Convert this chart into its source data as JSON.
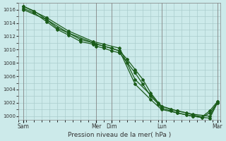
{
  "xlabel": "Pression niveau de la mer( hPa )",
  "background_color": "#cceaea",
  "grid_color_major": "#aacccc",
  "grid_color_minor": "#bbdada",
  "line_color": "#1a5c1a",
  "ylim": [
    999.5,
    1017.0
  ],
  "yticks": [
    1000,
    1002,
    1004,
    1006,
    1008,
    1010,
    1012,
    1014,
    1016
  ],
  "xlim": [
    0,
    13.0
  ],
  "day_labels": [
    "Sam",
    "",
    "Mer",
    "Dim",
    "",
    "Lun",
    "",
    "Mar"
  ],
  "day_positions": [
    0.3,
    2.5,
    5.0,
    6.0,
    7.5,
    9.2,
    11.2,
    12.8
  ],
  "vline_positions": [
    0.3,
    5.0,
    6.0,
    9.2,
    12.8
  ],
  "series": [
    {
      "x": [
        0.3,
        1.0,
        1.8,
        2.5,
        3.2,
        4.0,
        4.8,
        5.0,
        5.5,
        6.0,
        6.5,
        7.0,
        7.5,
        8.0,
        8.5,
        9.0,
        9.2,
        9.8,
        10.2,
        10.8,
        11.2,
        11.8,
        12.3,
        12.8
      ],
      "y": [
        1016.5,
        1015.8,
        1014.5,
        1013.2,
        1012.5,
        1011.5,
        1011.0,
        1010.8,
        1010.5,
        1010.2,
        1009.8,
        1008.5,
        1007.0,
        1005.5,
        1003.5,
        1002.0,
        1001.5,
        1001.0,
        1000.8,
        1000.5,
        1000.2,
        999.9,
        1000.8,
        1002.2
      ],
      "marker_x": [
        0.3,
        1.0,
        1.8,
        2.5,
        3.2,
        4.0,
        4.8,
        5.0,
        5.5,
        6.0,
        6.5,
        7.0,
        7.5,
        8.0,
        8.5,
        9.0,
        9.2,
        9.8,
        10.2,
        10.8,
        11.2,
        11.8,
        12.3,
        12.8
      ],
      "marker_y": [
        1016.5,
        1015.8,
        1014.5,
        1013.2,
        1012.5,
        1011.5,
        1011.0,
        1010.8,
        1010.5,
        1010.2,
        1009.8,
        1008.5,
        1007.0,
        1005.5,
        1003.5,
        1002.0,
        1001.5,
        1001.0,
        1000.8,
        1000.5,
        1000.2,
        999.9,
        1000.8,
        1002.2
      ]
    },
    {
      "x": [
        0.3,
        1.0,
        1.8,
        2.5,
        3.2,
        4.0,
        4.8,
        5.0,
        5.5,
        6.0,
        6.5,
        7.0,
        7.5,
        8.0,
        8.5,
        9.0,
        9.2,
        9.8,
        10.2,
        10.8,
        11.2,
        11.8,
        12.3,
        12.8
      ],
      "y": [
        1016.2,
        1015.5,
        1014.2,
        1013.0,
        1012.2,
        1011.2,
        1010.8,
        1010.5,
        1010.2,
        1009.8,
        1009.5,
        1008.0,
        1006.5,
        1004.8,
        1003.0,
        1001.8,
        1001.2,
        1000.8,
        1000.5,
        1000.2,
        1000.0,
        999.8,
        1000.5,
        1002.0
      ],
      "marker_x": [
        0.3,
        1.0,
        1.8,
        2.5,
        3.2,
        4.0,
        4.8,
        5.0,
        5.5,
        6.0,
        6.5,
        7.0,
        7.5,
        8.0,
        8.5,
        9.0,
        9.2,
        9.8,
        10.2,
        10.8,
        11.2,
        11.8,
        12.3,
        12.8
      ],
      "marker_y": [
        1016.2,
        1015.5,
        1014.2,
        1013.0,
        1012.2,
        1011.2,
        1010.8,
        1010.5,
        1010.2,
        1009.8,
        1009.5,
        1008.0,
        1006.5,
        1004.8,
        1003.0,
        1001.8,
        1001.2,
        1000.8,
        1000.5,
        1000.2,
        1000.0,
        999.8,
        1000.5,
        1002.0
      ]
    },
    {
      "x": [
        0.3,
        1.8,
        3.2,
        4.8,
        5.5,
        6.5,
        7.5,
        8.5,
        9.2,
        10.2,
        11.2,
        12.3,
        12.8
      ],
      "y": [
        1016.5,
        1014.8,
        1012.8,
        1011.2,
        1010.8,
        1010.2,
        1005.5,
        1003.2,
        1001.5,
        1000.8,
        1000.3,
        1000.0,
        1002.2
      ],
      "marker_x": [
        0.3,
        1.8,
        3.2,
        4.8,
        5.5,
        6.5,
        7.5,
        8.5,
        9.2,
        10.2,
        11.2,
        12.3,
        12.8
      ],
      "marker_y": [
        1016.5,
        1014.8,
        1012.8,
        1011.2,
        1010.8,
        1010.2,
        1005.5,
        1003.2,
        1001.5,
        1000.8,
        1000.3,
        1000.0,
        1002.2
      ]
    },
    {
      "x": [
        0.3,
        1.8,
        3.2,
        4.8,
        5.5,
        6.5,
        7.5,
        8.5,
        9.2,
        10.2,
        11.2,
        12.3,
        12.8
      ],
      "y": [
        1016.0,
        1014.5,
        1012.5,
        1011.0,
        1010.5,
        1009.8,
        1004.8,
        1002.5,
        1001.0,
        1000.5,
        1000.0,
        999.7,
        1002.0
      ],
      "marker_x": [
        0.3,
        1.8,
        3.2,
        4.8,
        5.5,
        6.5,
        7.5,
        8.5,
        9.2,
        10.2,
        11.2,
        12.3,
        12.8
      ],
      "marker_y": [
        1016.0,
        1014.5,
        1012.5,
        1011.0,
        1010.5,
        1009.8,
        1004.8,
        1002.5,
        1001.0,
        1000.5,
        1000.0,
        999.7,
        1002.0
      ]
    }
  ]
}
